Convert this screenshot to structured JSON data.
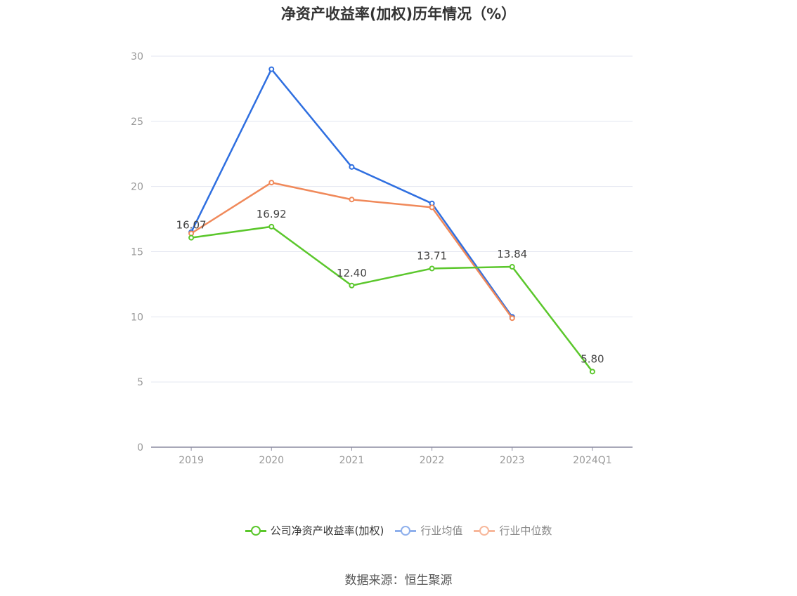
{
  "title": "净资产收益率(加权)历年情况（%）",
  "source": "数据来源：恒生聚源",
  "chart_data": {
    "type": "line",
    "title": "净资产收益率(加权)历年情况（%）",
    "categories": [
      "2019",
      "2020",
      "2021",
      "2022",
      "2023",
      "2024Q1"
    ],
    "ylim": [
      0,
      30
    ],
    "yticks": [
      0,
      5,
      10,
      15,
      20,
      25,
      30
    ],
    "grid": true,
    "legend_position": "bottom-center",
    "series": [
      {
        "name": "公司净资产收益率(加权)",
        "color": "#5bc72c",
        "values": [
          16.07,
          16.92,
          12.4,
          13.71,
          13.84,
          5.8
        ],
        "labels": [
          "16.07",
          "16.92",
          "12.40",
          "13.71",
          "13.84",
          "5.80"
        ]
      },
      {
        "name": "行业均值",
        "color": "#2f6fe0",
        "values": [
          16.5,
          29.0,
          21.5,
          18.7,
          10.0,
          null
        ]
      },
      {
        "name": "行业中位数",
        "color": "#f0895a",
        "values": [
          16.4,
          20.3,
          19.0,
          18.4,
          9.9,
          null
        ]
      }
    ]
  },
  "legend": {
    "items": [
      {
        "label": "公司净资产收益率(加权)",
        "color": "#5bc72c"
      },
      {
        "label": "行业均值",
        "color": "#8fb0ec"
      },
      {
        "label": "行业中位数",
        "color": "#f7b79b"
      }
    ]
  }
}
